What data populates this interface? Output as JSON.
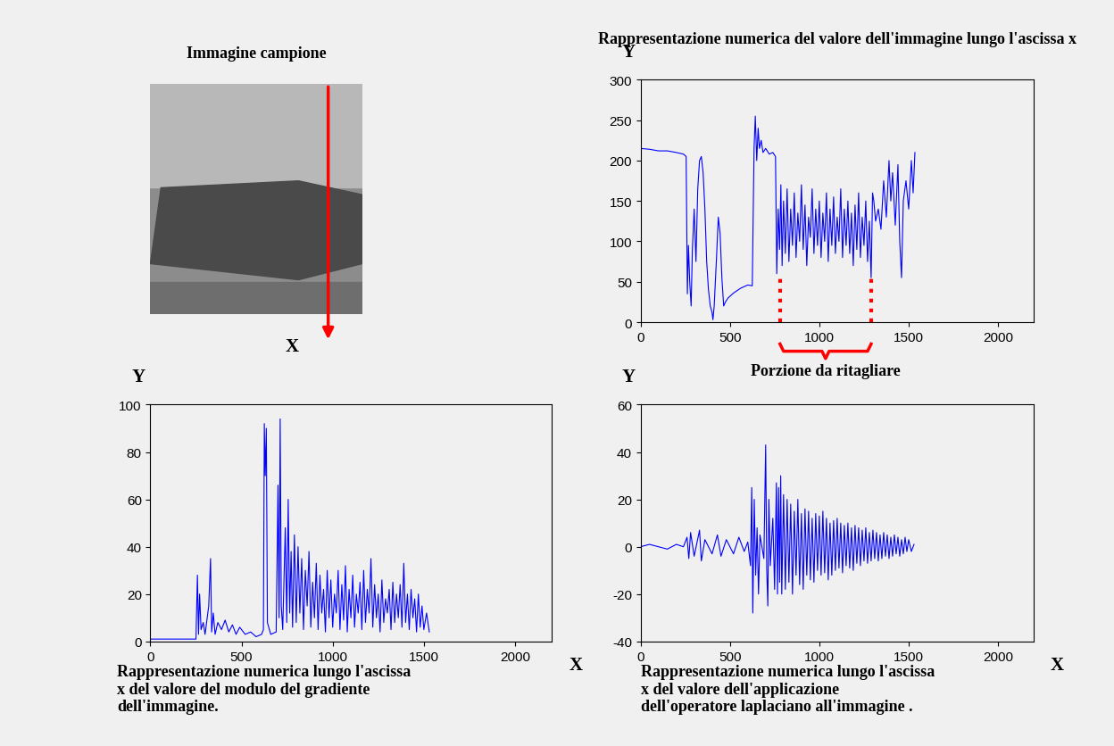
{
  "image": {
    "title": "Immagine campione",
    "arrow_label": "X"
  },
  "chart_data": [
    {
      "type": "line",
      "title": "Rappresentazione numerica del valore dell'immagine lungo l'ascissa x",
      "ylabel": "Y",
      "color": "#0000ff",
      "x": [
        0,
        50,
        100,
        150,
        200,
        240,
        255,
        262,
        268,
        275,
        283,
        290,
        300,
        310,
        320,
        330,
        340,
        350,
        360,
        370,
        380,
        390,
        400,
        405,
        412,
        425,
        435,
        445,
        455,
        465,
        475,
        490,
        520,
        560,
        600,
        625,
        635,
        642,
        650,
        658,
        665,
        675,
        685,
        700,
        720,
        740,
        755,
        762,
        770,
        778,
        785,
        792,
        800,
        810,
        820,
        830,
        840,
        850,
        860,
        870,
        880,
        890,
        900,
        910,
        920,
        930,
        940,
        950,
        960,
        970,
        980,
        990,
        1000,
        1010,
        1020,
        1030,
        1040,
        1050,
        1060,
        1070,
        1080,
        1090,
        1100,
        1110,
        1120,
        1130,
        1140,
        1150,
        1160,
        1170,
        1180,
        1190,
        1200,
        1210,
        1220,
        1230,
        1240,
        1250,
        1260,
        1270,
        1280,
        1290,
        1298,
        1305,
        1315,
        1330,
        1345,
        1360,
        1375,
        1390,
        1400,
        1410,
        1425,
        1440,
        1450,
        1460,
        1470,
        1485,
        1500,
        1515,
        1525,
        1535
      ],
      "values": [
        215,
        214,
        212,
        212,
        210,
        208,
        205,
        35,
        95,
        50,
        20,
        90,
        140,
        75,
        165,
        200,
        205,
        185,
        140,
        75,
        40,
        20,
        12,
        3,
        20,
        80,
        130,
        110,
        55,
        20,
        25,
        30,
        36,
        42,
        46,
        45,
        215,
        255,
        200,
        240,
        215,
        225,
        210,
        215,
        208,
        210,
        205,
        60,
        140,
        90,
        170,
        70,
        150,
        85,
        165,
        75,
        140,
        95,
        160,
        80,
        135,
        100,
        170,
        90,
        145,
        70,
        130,
        105,
        165,
        85,
        140,
        95,
        150,
        80,
        135,
        100,
        160,
        75,
        140,
        95,
        155,
        85,
        130,
        100,
        165,
        80,
        140,
        95,
        150,
        85,
        135,
        70,
        145,
        90,
        160,
        80,
        130,
        95,
        150,
        75,
        125,
        55,
        160,
        150,
        125,
        140,
        115,
        175,
        130,
        200,
        150,
        185,
        120,
        195,
        100,
        55,
        150,
        175,
        140,
        200,
        160,
        210
      ],
      "xlim": [
        0,
        2200
      ],
      "xticks": [
        0,
        500,
        1000,
        1500,
        2000
      ],
      "ylim": [
        0,
        300
      ],
      "yticks": [
        0,
        50,
        100,
        150,
        200,
        250,
        300
      ],
      "annotations": [
        {
          "text": "Porzione da ritagliare",
          "x_range": [
            780,
            1290
          ],
          "y": 60
        }
      ]
    },
    {
      "type": "line",
      "caption": "Rappresentazione numerica lungo l'ascissa x del valore del modulo del gradiente dell'immagine.",
      "xlabel": "X",
      "ylabel": "Y",
      "color": "#0000ff",
      "x": [
        0,
        100,
        200,
        250,
        258,
        264,
        270,
        278,
        290,
        300,
        320,
        330,
        336,
        345,
        355,
        370,
        390,
        410,
        430,
        450,
        470,
        490,
        520,
        550,
        580,
        610,
        620,
        625,
        630,
        636,
        642,
        660,
        690,
        700,
        706,
        712,
        718,
        726,
        740,
        748,
        756,
        764,
        772,
        780,
        790,
        800,
        810,
        820,
        830,
        840,
        850,
        860,
        870,
        880,
        890,
        900,
        910,
        920,
        930,
        940,
        950,
        960,
        970,
        980,
        990,
        1000,
        1010,
        1020,
        1030,
        1040,
        1050,
        1060,
        1070,
        1080,
        1090,
        1100,
        1110,
        1120,
        1130,
        1140,
        1150,
        1160,
        1170,
        1180,
        1190,
        1200,
        1210,
        1220,
        1230,
        1240,
        1250,
        1260,
        1270,
        1280,
        1290,
        1300,
        1310,
        1320,
        1330,
        1340,
        1350,
        1360,
        1370,
        1380,
        1390,
        1400,
        1410,
        1420,
        1430,
        1440,
        1450,
        1460,
        1470,
        1480,
        1490,
        1500,
        1515,
        1530
      ],
      "values": [
        1,
        1,
        1,
        1,
        28,
        3,
        20,
        5,
        8,
        3,
        15,
        35,
        4,
        12,
        3,
        8,
        5,
        9,
        4,
        7,
        3,
        6,
        3,
        4,
        2,
        3,
        5,
        92,
        70,
        90,
        8,
        3,
        4,
        66,
        10,
        94,
        15,
        5,
        48,
        8,
        60,
        12,
        38,
        6,
        45,
        8,
        40,
        12,
        35,
        5,
        30,
        15,
        38,
        6,
        25,
        10,
        33,
        5,
        28,
        12,
        22,
        4,
        30,
        10,
        26,
        6,
        20,
        12,
        30,
        5,
        24,
        9,
        32,
        4,
        22,
        10,
        28,
        6,
        20,
        12,
        25,
        5,
        30,
        8,
        22,
        12,
        35,
        6,
        24,
        10,
        20,
        4,
        26,
        8,
        18,
        12,
        22,
        5,
        25,
        8,
        20,
        10,
        24,
        6,
        33,
        8,
        20,
        5,
        22,
        10,
        18,
        4,
        20,
        6,
        15,
        5,
        12,
        4
      ],
      "xlim": [
        0,
        2200
      ],
      "xticks": [
        0,
        500,
        1000,
        1500,
        2000
      ],
      "ylim": [
        0,
        100
      ],
      "yticks": [
        0,
        20,
        40,
        60,
        80,
        100
      ]
    },
    {
      "type": "line",
      "caption": "Rappresentazione numerica lungo l'ascissa x del valore dell'applicazione dell'operatore laplaciano all'immagine .",
      "xlabel": "X",
      "ylabel": "Y",
      "color": "#0000ff",
      "x": [
        0,
        50,
        100,
        150,
        200,
        240,
        260,
        270,
        280,
        300,
        330,
        340,
        360,
        400,
        430,
        450,
        480,
        520,
        550,
        580,
        600,
        615,
        622,
        628,
        636,
        644,
        652,
        660,
        668,
        690,
        700,
        706,
        712,
        718,
        726,
        740,
        750,
        760,
        766,
        772,
        778,
        784,
        790,
        800,
        810,
        820,
        830,
        840,
        850,
        860,
        870,
        880,
        890,
        900,
        910,
        920,
        930,
        940,
        950,
        960,
        970,
        980,
        990,
        1000,
        1010,
        1020,
        1030,
        1040,
        1050,
        1060,
        1070,
        1080,
        1090,
        1100,
        1110,
        1120,
        1130,
        1140,
        1150,
        1160,
        1170,
        1180,
        1190,
        1200,
        1210,
        1220,
        1230,
        1240,
        1250,
        1260,
        1270,
        1280,
        1290,
        1300,
        1310,
        1320,
        1330,
        1340,
        1350,
        1360,
        1370,
        1380,
        1390,
        1400,
        1410,
        1420,
        1430,
        1440,
        1450,
        1460,
        1470,
        1480,
        1490,
        1500,
        1515,
        1530
      ],
      "values": [
        0,
        1,
        0,
        -1,
        1,
        0,
        4,
        -5,
        6,
        -4,
        7,
        -6,
        3,
        -3,
        5,
        -4,
        3,
        -3,
        4,
        -2,
        2,
        -8,
        25,
        -28,
        20,
        -12,
        8,
        -20,
        5,
        -5,
        43,
        -10,
        -25,
        20,
        -8,
        12,
        -18,
        27,
        -20,
        25,
        -15,
        30,
        -20,
        22,
        -18,
        20,
        -15,
        18,
        -20,
        15,
        -12,
        20,
        -16,
        14,
        -18,
        16,
        -12,
        15,
        -14,
        12,
        -15,
        14,
        -10,
        13,
        -12,
        15,
        -11,
        12,
        -14,
        10,
        -12,
        11,
        -10,
        12,
        -9,
        10,
        -11,
        9,
        -8,
        10,
        -9,
        8,
        -10,
        9,
        -7,
        8,
        -8,
        7,
        -6,
        8,
        -7,
        6,
        -6,
        7,
        -5,
        6,
        -6,
        5,
        -5,
        6,
        -4,
        5,
        -5,
        4,
        -4,
        5,
        -3,
        4,
        -4,
        3,
        -3,
        4,
        -2,
        3,
        -2,
        1
      ],
      "xlim": [
        0,
        2200
      ],
      "xticks": [
        0,
        500,
        1000,
        1500,
        2000
      ],
      "ylim": [
        -40,
        60
      ],
      "yticks": [
        -40,
        -20,
        0,
        20,
        40,
        60
      ]
    }
  ]
}
